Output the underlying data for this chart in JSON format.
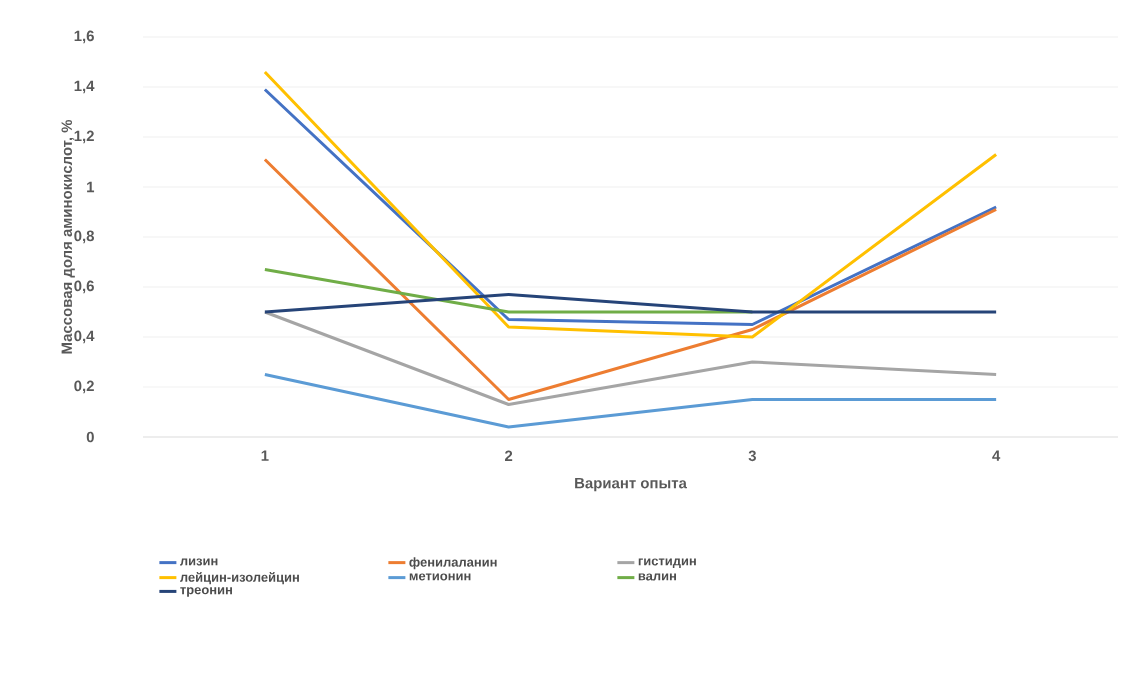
{
  "chart_data": {
    "type": "line",
    "xlabel": "Вариант опыта",
    "ylabel": "Массовая доля аминокислот, %",
    "categories": [
      "1",
      "2",
      "3",
      "4"
    ],
    "series": [
      {
        "name": "лизин",
        "color": "#4472c4",
        "values": [
          1.39,
          0.47,
          0.45,
          0.92
        ]
      },
      {
        "name": "фенилаланин",
        "color": "#ed7d31",
        "values": [
          1.11,
          0.15,
          0.43,
          0.91
        ]
      },
      {
        "name": "гистидин",
        "color": "#a5a5a5",
        "values": [
          0.5,
          0.13,
          0.3,
          0.25
        ]
      },
      {
        "name": "лейцин-изолейцин",
        "color": "#ffc000",
        "values": [
          1.46,
          0.44,
          0.4,
          1.13
        ]
      },
      {
        "name": "метионин",
        "color": "#5b9bd5",
        "values": [
          0.25,
          0.04,
          0.15,
          0.15
        ]
      },
      {
        "name": "валин",
        "color": "#70ad47",
        "values": [
          0.67,
          0.5,
          0.5,
          null
        ]
      },
      {
        "name": "треонин",
        "color": "#264478",
        "values": [
          0.5,
          0.57,
          0.5,
          0.5
        ]
      }
    ],
    "ylim": [
      0,
      1.6
    ],
    "yticks": [
      0,
      {
        "value": 0.2,
        "label": "0,2"
      },
      {
        "value": 0.4,
        "label": "0,4"
      },
      {
        "value": 0.6,
        "label": "0,6"
      },
      {
        "value": 0.8,
        "label": "0,8"
      },
      1,
      {
        "value": 1.2,
        "label": "1,2"
      },
      {
        "value": 1.4,
        "label": "1,4"
      },
      {
        "value": 1.6,
        "label": "1,6"
      }
    ],
    "grid": "y",
    "legend": "bottom",
    "marker": "none",
    "line_style": "solid"
  }
}
